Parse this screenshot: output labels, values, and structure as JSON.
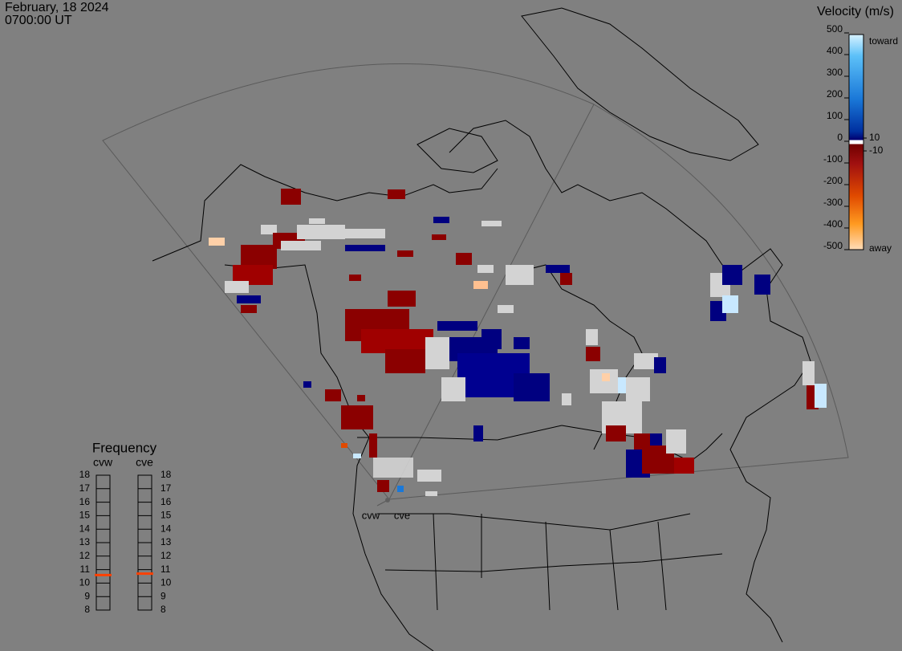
{
  "header": {
    "date": "February, 18 2024",
    "time": "0700:00 UT"
  },
  "radar_labels": [
    "cvw",
    "cve"
  ],
  "colorbar": {
    "title": "Velocity (m/s)",
    "ticks": [
      500,
      400,
      300,
      200,
      100,
      0,
      -100,
      -200,
      -300,
      -400,
      -500
    ],
    "inner_ticks": [
      10,
      -10
    ],
    "top_label": "toward",
    "bottom_label": "away"
  },
  "frequency": {
    "title": "Frequency",
    "range": [
      8,
      18
    ],
    "ticks": [
      18,
      17,
      16,
      15,
      14,
      13,
      12,
      11,
      10,
      9,
      8
    ],
    "radars": [
      {
        "name": "cvw",
        "value": 10.6
      },
      {
        "name": "cve",
        "value": 10.7
      }
    ]
  }
}
